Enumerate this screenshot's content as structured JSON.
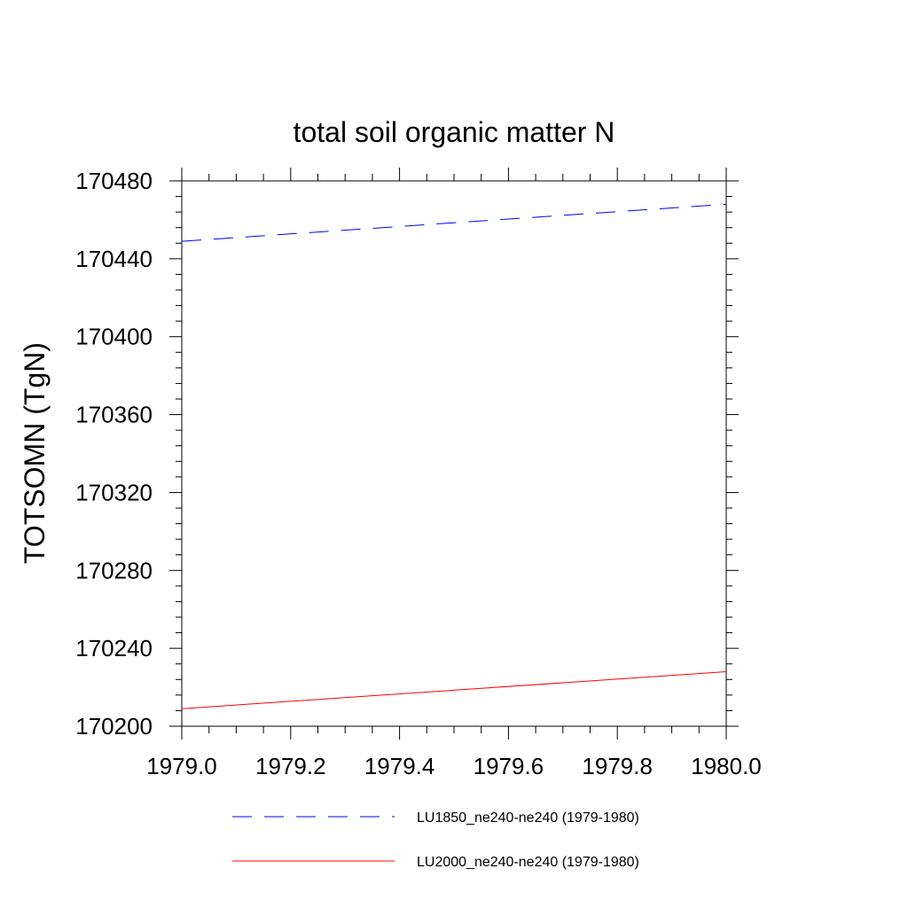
{
  "chart_data": {
    "type": "line",
    "title": "total soil organic matter N",
    "xlabel": "",
    "ylabel": "TOTSOMN  (TgN)",
    "xlim": [
      1979.0,
      1980.0
    ],
    "ylim": [
      170200,
      170480
    ],
    "x_ticks": [
      "1979.0",
      "1979.2",
      "1979.4",
      "1979.6",
      "1979.8",
      "1980.0"
    ],
    "y_ticks": [
      "170200",
      "170240",
      "170280",
      "170320",
      "170360",
      "170400",
      "170440",
      "170480"
    ],
    "grid": false,
    "legend_position": "bottom",
    "series": [
      {
        "name": "LU1850_ne240-ne240 (1979-1980)",
        "color": "#0000ff",
        "style": "dashed",
        "x": [
          1979.0,
          1980.0
        ],
        "y": [
          170449,
          170468
        ]
      },
      {
        "name": "LU2000_ne240-ne240 (1979-1980)",
        "color": "#ff0000",
        "style": "solid",
        "x": [
          1979.0,
          1980.0
        ],
        "y": [
          170209,
          170228
        ]
      }
    ]
  }
}
